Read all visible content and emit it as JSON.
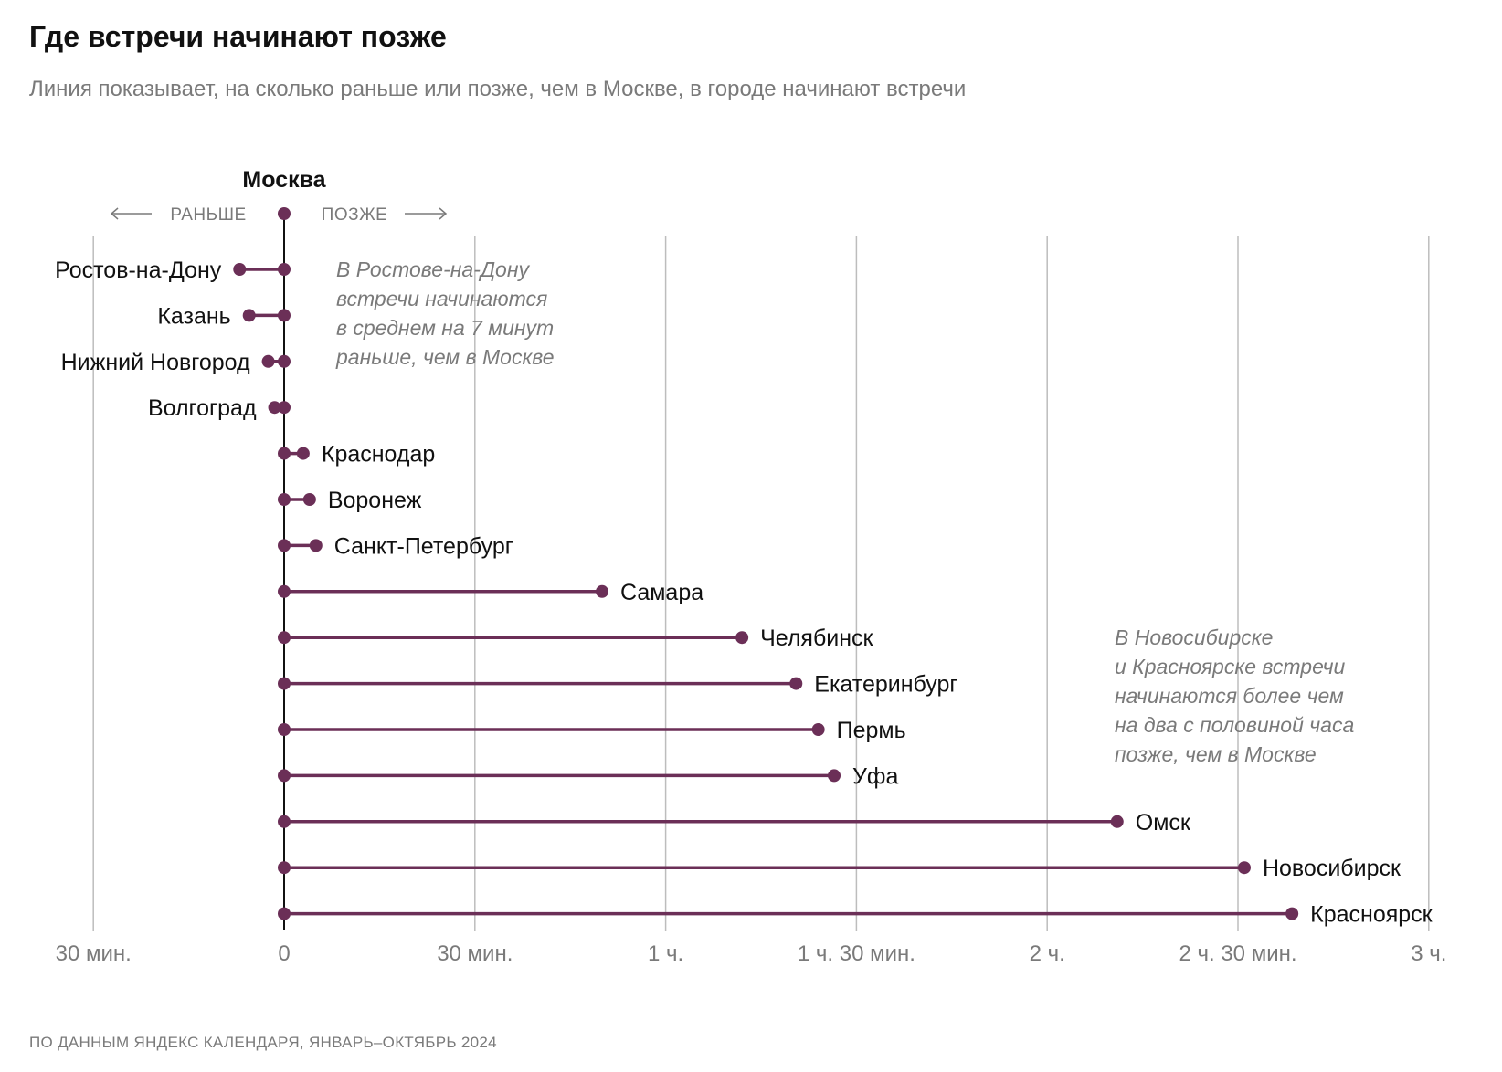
{
  "header": {
    "title": "Где встречи начинают позже",
    "subtitle": "Линия показывает, на сколько раньше или позже, чем в Москве, в городе начинают встречи"
  },
  "footer": {
    "source": "ПО ДАННЫМ ЯНДЕКС КАЛЕНДАРЯ, ЯНВАРЬ–ОКТЯБРЬ 2024"
  },
  "colors": {
    "accent": "#6b2f57",
    "grid": "#bdbdbd",
    "axis": "#111111"
  },
  "chart_data": {
    "type": "dumbbell",
    "reference": {
      "name": "Москва",
      "value": 0
    },
    "direction_labels": {
      "earlier": "РАНЬШЕ",
      "later": "ПОЗЖЕ"
    },
    "x_unit": "minutes",
    "xlim": [
      -30,
      180
    ],
    "x_ticks": [
      {
        "value": -30,
        "label": "30 мин."
      },
      {
        "value": 0,
        "label": "0"
      },
      {
        "value": 30,
        "label": "30 мин."
      },
      {
        "value": 60,
        "label": "1 ч."
      },
      {
        "value": 90,
        "label": "1 ч. 30 мин."
      },
      {
        "value": 120,
        "label": "2 ч."
      },
      {
        "value": 150,
        "label": "2 ч. 30 мин."
      },
      {
        "value": 180,
        "label": "3 ч."
      }
    ],
    "series": [
      {
        "city": "Ростов-на-Дону",
        "value": -7
      },
      {
        "city": "Казань",
        "value": -5.5
      },
      {
        "city": "Нижний Новгород",
        "value": -2.5
      },
      {
        "city": "Волгоград",
        "value": -1.5
      },
      {
        "city": "Краснодар",
        "value": 3
      },
      {
        "city": "Воронеж",
        "value": 4
      },
      {
        "city": "Санкт-Петербург",
        "value": 5
      },
      {
        "city": "Самара",
        "value": 50
      },
      {
        "city": "Челябинск",
        "value": 72
      },
      {
        "city": "Екатеринбург",
        "value": 80.5
      },
      {
        "city": "Пермь",
        "value": 84
      },
      {
        "city": "Уфа",
        "value": 86.5
      },
      {
        "city": "Омск",
        "value": 131
      },
      {
        "city": "Новосибирск",
        "value": 151
      },
      {
        "city": "Красноярск",
        "value": 158.5
      }
    ],
    "annotations": [
      {
        "target": "Ростов-на-Дону",
        "lines": [
          "В Ростове-на-Дону",
          "встречи начинаются",
          "в среднем на 7 минут",
          "раньше, чем в Москве"
        ]
      },
      {
        "target": "Новосибирск",
        "lines": [
          "В Новосибирске",
          "и Красноярске встречи",
          "начинаются более чем",
          "на два с половиной часа",
          "позже, чем в Москве"
        ]
      }
    ]
  }
}
